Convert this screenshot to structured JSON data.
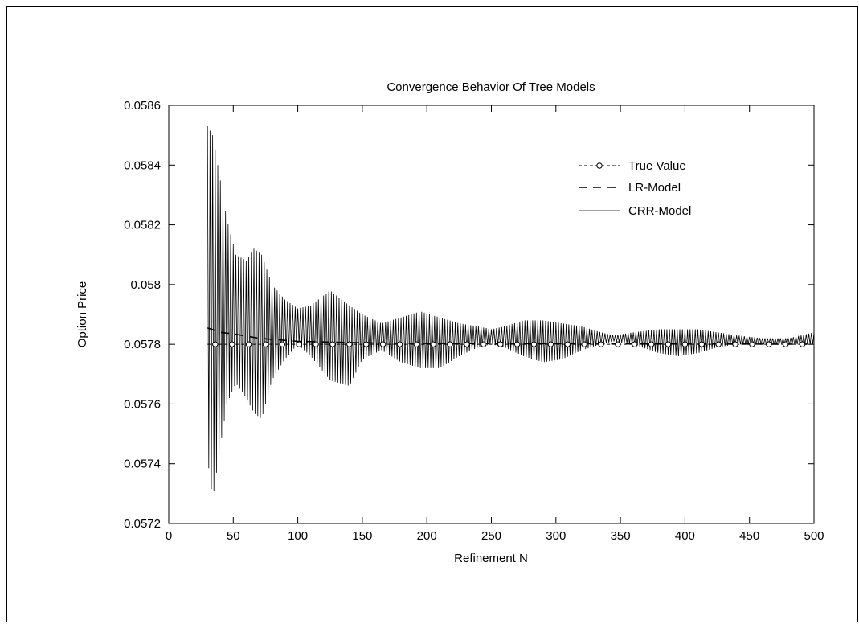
{
  "chart_data": {
    "type": "line",
    "title": "Convergence Behavior Of Tree Models",
    "xlabel": "Refinement N",
    "ylabel": "Option Price",
    "xlim": [
      0,
      500
    ],
    "ylim": [
      0.0572,
      0.0586
    ],
    "x_ticks": [
      0,
      50,
      100,
      150,
      200,
      250,
      300,
      350,
      400,
      450,
      500
    ],
    "x_tick_labels": [
      "0",
      "50",
      "100",
      "150",
      "200",
      "250",
      "300",
      "350",
      "400",
      "450",
      "500"
    ],
    "y_ticks": [
      0.0572,
      0.0574,
      0.0576,
      0.0578,
      0.058,
      0.0582,
      0.0584,
      0.0586
    ],
    "y_tick_labels": [
      "0.0572",
      "0.0574",
      "0.0576",
      "0.0578",
      "0.058",
      "0.0582",
      "0.0584",
      "0.0586"
    ],
    "grid": false,
    "legend": "top-right",
    "series": [
      {
        "name": "True Value",
        "style": "dashed-circle-markers",
        "color": "#000000",
        "x": [
          30,
          500
        ],
        "y": [
          0.0578,
          0.0578
        ]
      },
      {
        "name": "LR-Model",
        "style": "dashed",
        "color": "#000000",
        "x": [
          30,
          40,
          50,
          70,
          100,
          150,
          200,
          300,
          400,
          500
        ],
        "y": [
          0.057855,
          0.05784,
          0.057835,
          0.05782,
          0.05781,
          0.057805,
          0.057803,
          0.057802,
          0.057801,
          0.0578005
        ]
      },
      {
        "name": "CRR-Model",
        "style": "solid-oscillating",
        "color": "#000000",
        "x_range": [
          30,
          500
        ],
        "upper_envelope": {
          "x": [
            30,
            34,
            38,
            45,
            52,
            60,
            66,
            72,
            80,
            90,
            100,
            110,
            125,
            140,
            150,
            165,
            180,
            195,
            210,
            225,
            240,
            250,
            260,
            275,
            290,
            305,
            320,
            335,
            345,
            360,
            380,
            395,
            410,
            425,
            440,
            460,
            480,
            500
          ],
          "y": [
            0.05853,
            0.0585,
            0.0584,
            0.05822,
            0.0581,
            0.05808,
            0.05812,
            0.0581,
            0.058,
            0.05795,
            0.05792,
            0.05793,
            0.05798,
            0.05793,
            0.0579,
            0.05787,
            0.05789,
            0.05791,
            0.05789,
            0.05787,
            0.05786,
            0.05785,
            0.05786,
            0.05788,
            0.05788,
            0.05787,
            0.05786,
            0.05784,
            0.05783,
            0.05784,
            0.05785,
            0.05785,
            0.05785,
            0.05784,
            0.05783,
            0.05782,
            0.05782,
            0.05784
          ]
        },
        "lower_envelope": {
          "x": [
            30,
            34,
            38,
            45,
            52,
            60,
            66,
            72,
            80,
            90,
            100,
            110,
            125,
            140,
            150,
            165,
            180,
            195,
            210,
            225,
            240,
            250,
            260,
            275,
            290,
            305,
            320,
            335,
            345,
            360,
            380,
            395,
            410,
            425,
            440,
            460,
            480,
            500
          ],
          "y": [
            0.05742,
            0.05728,
            0.0574,
            0.0576,
            0.05767,
            0.05762,
            0.05757,
            0.05755,
            0.05768,
            0.05775,
            0.0578,
            0.05776,
            0.05768,
            0.05766,
            0.05775,
            0.05778,
            0.05774,
            0.05772,
            0.05772,
            0.05776,
            0.05779,
            0.0578,
            0.05779,
            0.05776,
            0.05774,
            0.05775,
            0.05778,
            0.0578,
            0.05781,
            0.0578,
            0.05777,
            0.05776,
            0.05777,
            0.05779,
            0.0578,
            0.0578,
            0.0578,
            0.0578
          ]
        }
      }
    ]
  }
}
